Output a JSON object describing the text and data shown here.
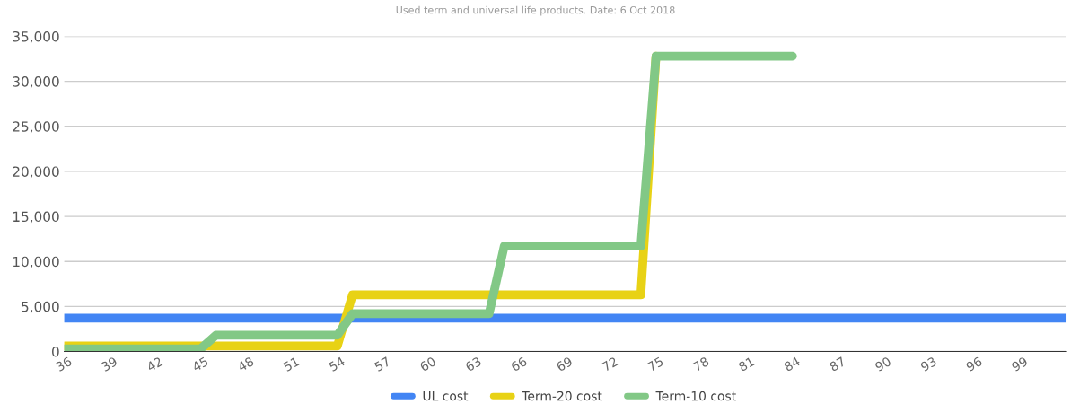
{
  "chart_data": {
    "type": "line",
    "title": "Used term and universal life products. Date: 6 Oct 2018",
    "categories": [
      "36",
      null,
      null,
      "39",
      null,
      null,
      "42",
      null,
      null,
      "45",
      null,
      null,
      "48",
      null,
      null,
      "51",
      null,
      null,
      "54",
      null,
      null,
      "57",
      null,
      null,
      "60",
      null,
      null,
      "63",
      null,
      null,
      "66",
      null,
      null,
      "69",
      null,
      null,
      "72",
      null,
      null,
      "75",
      null,
      null,
      "78",
      null,
      null,
      "81",
      null,
      null,
      "84",
      null,
      null,
      "87",
      null,
      null,
      "90",
      null,
      null,
      "93",
      null,
      null,
      "96",
      null,
      null,
      "99",
      null,
      null,
      null
    ],
    "series": [
      {
        "name": "UL cost",
        "color": "#4285f4",
        "values": [
          3700,
          3700,
          3700,
          3700,
          3700,
          3700,
          3700,
          3700,
          3700,
          3700,
          3700,
          3700,
          3700,
          3700,
          3700,
          3700,
          3700,
          3700,
          3700,
          3700,
          3700,
          3700,
          3700,
          3700,
          3700,
          3700,
          3700,
          3700,
          3700,
          3700,
          3700,
          3700,
          3700,
          3700,
          3700,
          3700,
          3700,
          3700,
          3700,
          3700,
          3700,
          3700,
          3700,
          3700,
          3700,
          3700,
          3700,
          3700,
          3700,
          3700,
          3700,
          3700,
          3700,
          3700,
          3700,
          3700,
          3700,
          3700,
          3700,
          3700,
          3700,
          3700,
          3700,
          3700,
          3700,
          3700,
          3700
        ]
      },
      {
        "name": "Term-20 cost",
        "color": "#e8d215",
        "values": [
          600,
          600,
          600,
          600,
          600,
          600,
          600,
          600,
          600,
          600,
          600,
          600,
          600,
          600,
          600,
          600,
          600,
          600,
          600,
          6300,
          6300,
          6300,
          6300,
          6300,
          6300,
          6300,
          6300,
          6300,
          6300,
          6300,
          6300,
          6300,
          6300,
          6300,
          6300,
          6300,
          6300,
          6300,
          6300,
          32800,
          null,
          null,
          null,
          null,
          null,
          null,
          null,
          null,
          null,
          null,
          null,
          null,
          null,
          null,
          null,
          null,
          null,
          null,
          null,
          null,
          null,
          null,
          null,
          null,
          null,
          null,
          null
        ]
      },
      {
        "name": "Term-10 cost",
        "color": "#82c886",
        "values": [
          300,
          300,
          300,
          300,
          300,
          300,
          300,
          300,
          300,
          300,
          1800,
          1800,
          1800,
          1800,
          1800,
          1800,
          1800,
          1800,
          1800,
          4200,
          4200,
          4200,
          4200,
          4200,
          4200,
          4200,
          4200,
          4200,
          4200,
          11700,
          11700,
          11700,
          11700,
          11700,
          11700,
          11700,
          11700,
          11700,
          11700,
          32800,
          32800,
          32800,
          32800,
          32800,
          32800,
          32800,
          32800,
          32800,
          32800,
          null,
          null,
          null,
          null,
          null,
          null,
          null,
          null,
          null,
          null,
          null,
          null,
          null,
          null,
          null,
          null,
          null,
          null
        ]
      }
    ],
    "ylim": [
      0,
      35000
    ],
    "yticks": [
      {
        "value": 0,
        "label": "0"
      },
      {
        "value": 5000,
        "label": "5,000"
      },
      {
        "value": 10000,
        "label": "10,000"
      },
      {
        "value": 15000,
        "label": "15,000"
      },
      {
        "value": 20000,
        "label": "20,000"
      },
      {
        "value": 25000,
        "label": "25,000"
      },
      {
        "value": 30000,
        "label": "30,000"
      },
      {
        "value": 35000,
        "label": "35,000"
      }
    ],
    "grid": "y",
    "legend": "bottom",
    "marker": "none",
    "line_style": "solid"
  }
}
